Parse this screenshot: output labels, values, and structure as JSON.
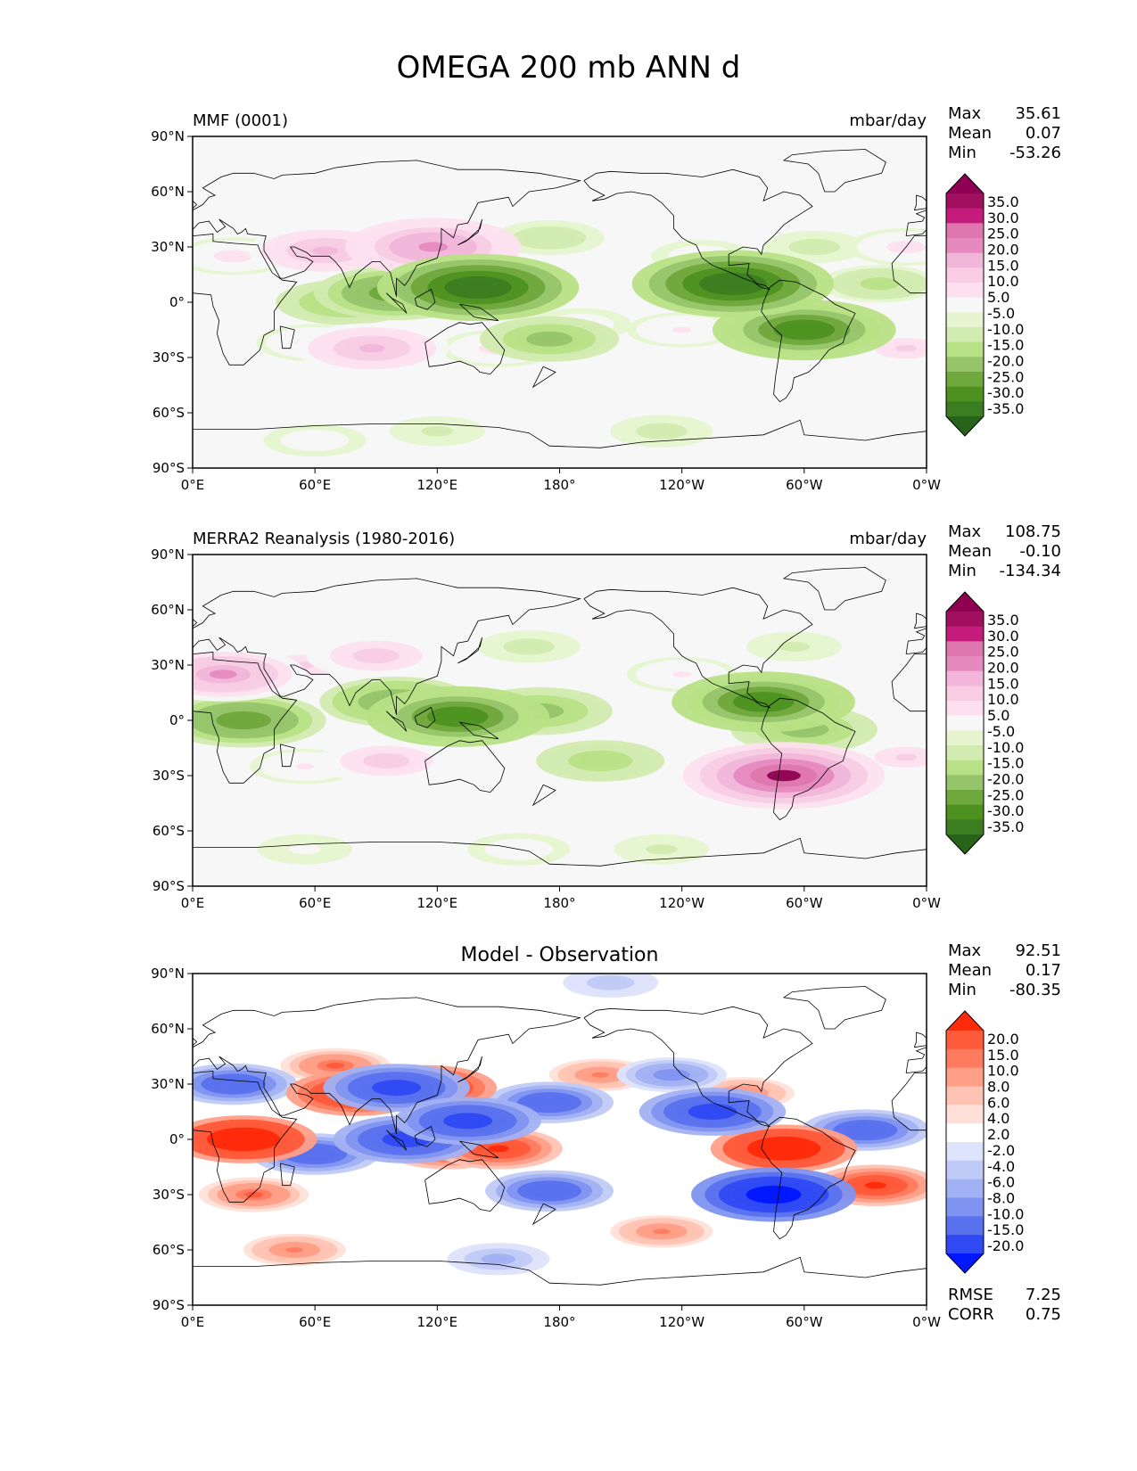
{
  "title": "OMEGA 200 mb ANN d",
  "colors": {
    "model_palette": [
      "#276419",
      "#3b7d21",
      "#4d9221",
      "#6fa83d",
      "#95c46a",
      "#b8e186",
      "#d2ebb0",
      "#e6f5d0",
      "#f7f7f7",
      "#fde0ef",
      "#f8cce3",
      "#f1b6da",
      "#e689bf",
      "#de77ae",
      "#c51b7d",
      "#a0105e",
      "#8e0152"
    ],
    "diff_palette": [
      "#0017ff",
      "#2f49f3",
      "#5a71ee",
      "#7f93f0",
      "#a2b1f3",
      "#c0caf6",
      "#dde3fb",
      "#ffffff",
      "#ffe0d8",
      "#ffc3b3",
      "#ff9f88",
      "#ff7b5f",
      "#ff5a3a",
      "#ff2a0a"
    ],
    "land_outline": "#000000"
  },
  "chart_data": [
    {
      "type": "heatmap",
      "panel": "top",
      "title_left": "MMF (0001)",
      "title_right": "mbar/day",
      "stats": {
        "Max": "35.61",
        "Mean": "0.07",
        "Min": "-53.26"
      },
      "colorbar_ticks": [
        "35.0",
        "30.0",
        "25.0",
        "20.0",
        "15.0",
        "10.0",
        "5.0",
        "-5.0",
        "-10.0",
        "-15.0",
        "-20.0",
        "-25.0",
        "-30.0",
        "-35.0"
      ],
      "x_ticks": [
        "0°E",
        "60°E",
        "120°E",
        "180°",
        "120°W",
        "60°W",
        "0°W"
      ],
      "y_ticks": [
        "90°N",
        "60°N",
        "30°N",
        "0°",
        "30°S",
        "60°S",
        "90°S"
      ],
      "xlim": [
        0,
        360
      ],
      "ylim": [
        -90,
        90
      ],
      "features": [
        {
          "lon": 140,
          "lat": 8,
          "value": -35
        },
        {
          "lon": 100,
          "lat": 5,
          "value": -25
        },
        {
          "lon": 75,
          "lat": 0,
          "value": -18
        },
        {
          "lon": 175,
          "lat": -20,
          "value": -18
        },
        {
          "lon": 265,
          "lat": 10,
          "value": -35
        },
        {
          "lon": 300,
          "lat": -15,
          "value": -30
        },
        {
          "lon": 337,
          "lat": 10,
          "value": -12
        },
        {
          "lon": 175,
          "lat": 35,
          "value": -10
        },
        {
          "lon": 305,
          "lat": 30,
          "value": -8
        },
        {
          "lon": 230,
          "lat": -70,
          "value": -8
        },
        {
          "lon": 120,
          "lat": -70,
          "value": -6
        },
        {
          "lon": 65,
          "lat": 28,
          "value": 22
        },
        {
          "lon": 118,
          "lat": 30,
          "value": 28
        },
        {
          "lon": 20,
          "lat": 25,
          "value": 12
        },
        {
          "lon": 88,
          "lat": -25,
          "value": 22
        },
        {
          "lon": 60,
          "lat": -22,
          "value": 12
        },
        {
          "lon": 150,
          "lat": -25,
          "value": 12
        },
        {
          "lon": 190,
          "lat": -12,
          "value": 8
        },
        {
          "lon": 240,
          "lat": -15,
          "value": 10
        },
        {
          "lon": 350,
          "lat": -25,
          "value": 15
        },
        {
          "lon": 350,
          "lat": 30,
          "value": 12
        },
        {
          "lon": 250,
          "lat": 25,
          "value": 8
        },
        {
          "lon": 60,
          "lat": -75,
          "value": 8
        }
      ]
    },
    {
      "type": "heatmap",
      "panel": "middle",
      "title_left": "MERRA2 Reanalysis (1980-2016)",
      "title_right": "mbar/day",
      "stats": {
        "Max": "108.75",
        "Mean": "-0.10",
        "Min": "-134.34"
      },
      "colorbar_ticks": [
        "35.0",
        "30.0",
        "25.0",
        "20.0",
        "15.0",
        "10.0",
        "5.0",
        "-5.0",
        "-10.0",
        "-15.0",
        "-20.0",
        "-25.0",
        "-30.0",
        "-35.0"
      ],
      "x_ticks": [
        "0°E",
        "60°E",
        "120°E",
        "180°",
        "120°W",
        "60°W",
        "0°W"
      ],
      "y_ticks": [
        "90°N",
        "60°N",
        "30°N",
        "0°",
        "30°S",
        "60°S",
        "90°S"
      ],
      "xlim": [
        0,
        360
      ],
      "ylim": [
        -90,
        90
      ],
      "features": [
        {
          "lon": 130,
          "lat": 2,
          "value": -30
        },
        {
          "lon": 170,
          "lat": 5,
          "value": -20
        },
        {
          "lon": 100,
          "lat": 10,
          "value": -22
        },
        {
          "lon": 25,
          "lat": 0,
          "value": -25
        },
        {
          "lon": 280,
          "lat": 10,
          "value": -30
        },
        {
          "lon": 300,
          "lat": -5,
          "value": -20
        },
        {
          "lon": 200,
          "lat": -22,
          "value": -15
        },
        {
          "lon": 165,
          "lat": 40,
          "value": -8
        },
        {
          "lon": 295,
          "lat": 40,
          "value": -6
        },
        {
          "lon": 230,
          "lat": -70,
          "value": -6
        },
        {
          "lon": 15,
          "lat": 25,
          "value": 25
        },
        {
          "lon": 55,
          "lat": 30,
          "value": 15
        },
        {
          "lon": 90,
          "lat": 35,
          "value": 18
        },
        {
          "lon": 95,
          "lat": -22,
          "value": 18
        },
        {
          "lon": 55,
          "lat": -25,
          "value": 10
        },
        {
          "lon": 270,
          "lat": -25,
          "value": 18
        },
        {
          "lon": 290,
          "lat": -30,
          "value": 35
        },
        {
          "lon": 350,
          "lat": -20,
          "value": 15
        },
        {
          "lon": 240,
          "lat": 25,
          "value": 10
        },
        {
          "lon": 160,
          "lat": -70,
          "value": 8
        },
        {
          "lon": 55,
          "lat": -70,
          "value": 6
        }
      ]
    },
    {
      "type": "heatmap",
      "panel": "bottom",
      "title_center": "Model - Observation",
      "stats": {
        "Max": "92.51",
        "Mean": "0.17",
        "Min": "-80.35"
      },
      "footer_stats": {
        "RMSE": "7.25",
        "CORR": "0.75"
      },
      "colorbar_ticks": [
        "20.0",
        "15.0",
        "10.0",
        "8.0",
        "6.0",
        "4.0",
        "2.0",
        "-2.0",
        "-4.0",
        "-6.0",
        "-8.0",
        "-10.0",
        "-15.0",
        "-20.0"
      ],
      "x_ticks": [
        "0°E",
        "60°E",
        "120°E",
        "180°",
        "120°W",
        "60°W",
        "0°W"
      ],
      "y_ticks": [
        "90°N",
        "60°N",
        "30°N",
        "0°",
        "30°S",
        "60°S",
        "90°S"
      ],
      "xlim": [
        0,
        360
      ],
      "ylim": [
        -90,
        90
      ],
      "features": [
        {
          "lon": 25,
          "lat": 0,
          "value": 20
        },
        {
          "lon": 80,
          "lat": 25,
          "value": 18
        },
        {
          "lon": 115,
          "lat": 28,
          "value": 18
        },
        {
          "lon": 70,
          "lat": 40,
          "value": 10
        },
        {
          "lon": 125,
          "lat": -5,
          "value": 15
        },
        {
          "lon": 150,
          "lat": -5,
          "value": 15
        },
        {
          "lon": 290,
          "lat": -5,
          "value": 20
        },
        {
          "lon": 335,
          "lat": -25,
          "value": 15
        },
        {
          "lon": 270,
          "lat": 25,
          "value": 8
        },
        {
          "lon": 200,
          "lat": 35,
          "value": 8
        },
        {
          "lon": 30,
          "lat": -30,
          "value": 10
        },
        {
          "lon": 230,
          "lat": -50,
          "value": 8
        },
        {
          "lon": 50,
          "lat": -60,
          "value": 8
        },
        {
          "lon": 100,
          "lat": 28,
          "value": -20
        },
        {
          "lon": 20,
          "lat": 30,
          "value": -15
        },
        {
          "lon": 60,
          "lat": -8,
          "value": -15
        },
        {
          "lon": 105,
          "lat": 0,
          "value": -20
        },
        {
          "lon": 135,
          "lat": 10,
          "value": -20
        },
        {
          "lon": 175,
          "lat": 20,
          "value": -15
        },
        {
          "lon": 175,
          "lat": -28,
          "value": -15
        },
        {
          "lon": 255,
          "lat": 15,
          "value": -20
        },
        {
          "lon": 285,
          "lat": -30,
          "value": -25
        },
        {
          "lon": 330,
          "lat": 5,
          "value": -15
        },
        {
          "lon": 235,
          "lat": 35,
          "value": -10
        },
        {
          "lon": 150,
          "lat": -65,
          "value": -8
        },
        {
          "lon": 205,
          "lat": 85,
          "value": -6
        }
      ]
    }
  ]
}
